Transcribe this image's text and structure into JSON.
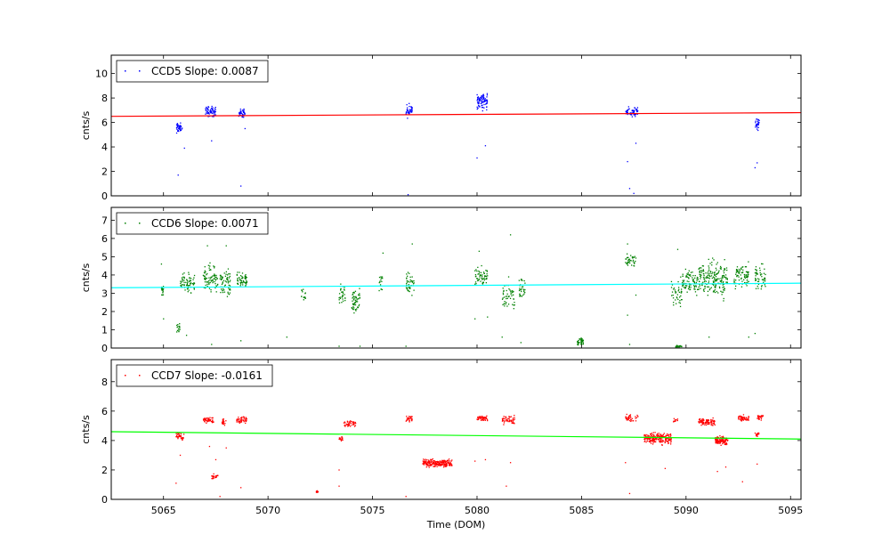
{
  "chart_data": [
    {
      "type": "scatter",
      "legend": "CCD5 Slope: 0.0087",
      "legend_placement": "top-left",
      "ylabel": "cnts/s",
      "xlim": [
        5062.5,
        5095.5
      ],
      "ylim": [
        0,
        11.5
      ],
      "yticks": [
        0,
        2,
        4,
        6,
        8,
        10
      ],
      "xticks": [
        5065,
        5070,
        5075,
        5080,
        5085,
        5090,
        5095
      ],
      "point_color": "#0000ff",
      "line_color": "#ff0000",
      "fit_line": {
        "x": [
          5062.5,
          5095.5
        ],
        "y": [
          6.5,
          6.8
        ]
      },
      "clusters": [
        {
          "x": [
            5065.6,
            5065.9
          ],
          "y": [
            5.0,
            6.1
          ],
          "n": 45
        },
        {
          "x": [
            5067.0,
            5067.5
          ],
          "y": [
            6.3,
            7.5
          ],
          "n": 60
        },
        {
          "x": [
            5068.6,
            5068.9
          ],
          "y": [
            6.2,
            7.3
          ],
          "n": 40
        },
        {
          "x": [
            5076.6,
            5076.9
          ],
          "y": [
            6.2,
            7.7
          ],
          "n": 45
        },
        {
          "x": [
            5080.0,
            5080.5
          ],
          "y": [
            6.8,
            8.7
          ],
          "n": 90
        },
        {
          "x": [
            5087.1,
            5087.7
          ],
          "y": [
            6.4,
            7.4
          ],
          "n": 60
        },
        {
          "x": [
            5093.3,
            5093.5
          ],
          "y": [
            5.2,
            6.5
          ],
          "n": 30
        }
      ],
      "outliers": [
        [
          5065.7,
          1.7
        ],
        [
          5066.0,
          3.9
        ],
        [
          5067.3,
          4.5
        ],
        [
          5068.7,
          0.8
        ],
        [
          5068.9,
          5.5
        ],
        [
          5076.7,
          0.1
        ],
        [
          5080.0,
          3.1
        ],
        [
          5080.4,
          4.1
        ],
        [
          5087.2,
          2.8
        ],
        [
          5087.3,
          0.6
        ],
        [
          5087.5,
          0.2
        ],
        [
          5087.6,
          4.3
        ],
        [
          5093.3,
          2.3
        ],
        [
          5093.4,
          2.7
        ]
      ]
    },
    {
      "type": "scatter",
      "legend": "CCD6 Slope: 0.0071",
      "legend_placement": "top-left",
      "ylabel": "cnts/s",
      "xlim": [
        5062.5,
        5095.5
      ],
      "ylim": [
        0,
        7.7
      ],
      "yticks": [
        0,
        1,
        2,
        3,
        4,
        5,
        6,
        7
      ],
      "xticks": [
        5065,
        5070,
        5075,
        5080,
        5085,
        5090,
        5095
      ],
      "point_color": "#008000",
      "line_color": "#00ffff",
      "fit_line": {
        "x": [
          5062.5,
          5095.5
        ],
        "y": [
          3.3,
          3.55
        ]
      },
      "clusters": [
        {
          "x": [
            5064.9,
            5065.0
          ],
          "y": [
            2.8,
            3.6
          ],
          "n": 20
        },
        {
          "x": [
            5065.6,
            5065.8
          ],
          "y": [
            0.8,
            1.4
          ],
          "n": 15
        },
        {
          "x": [
            5065.8,
            5066.5
          ],
          "y": [
            2.8,
            4.3
          ],
          "n": 70
        },
        {
          "x": [
            5066.9,
            5067.6
          ],
          "y": [
            2.8,
            4.8
          ],
          "n": 80
        },
        {
          "x": [
            5067.7,
            5068.2
          ],
          "y": [
            2.4,
            4.6
          ],
          "n": 60
        },
        {
          "x": [
            5068.5,
            5069.0
          ],
          "y": [
            3.1,
            4.3
          ],
          "n": 55
        },
        {
          "x": [
            5071.6,
            5071.8
          ],
          "y": [
            2.3,
            3.4
          ],
          "n": 15
        },
        {
          "x": [
            5073.4,
            5073.7
          ],
          "y": [
            2.0,
            3.8
          ],
          "n": 30
        },
        {
          "x": [
            5074.0,
            5074.4
          ],
          "y": [
            1.5,
            3.6
          ],
          "n": 55
        },
        {
          "x": [
            5075.3,
            5075.5
          ],
          "y": [
            2.9,
            4.2
          ],
          "n": 15
        },
        {
          "x": [
            5076.6,
            5077.0
          ],
          "y": [
            2.6,
            4.4
          ],
          "n": 40
        },
        {
          "x": [
            5079.9,
            5080.5
          ],
          "y": [
            3.2,
            4.6
          ],
          "n": 60
        },
        {
          "x": [
            5081.2,
            5081.8
          ],
          "y": [
            1.5,
            4.1
          ],
          "n": 50
        },
        {
          "x": [
            5082.0,
            5082.3
          ],
          "y": [
            2.4,
            4.2
          ],
          "n": 30
        },
        {
          "x": [
            5084.8,
            5085.1
          ],
          "y": [
            0.1,
            0.6
          ],
          "n": 40
        },
        {
          "x": [
            5087.1,
            5087.6
          ],
          "y": [
            4.3,
            5.3
          ],
          "n": 40
        },
        {
          "x": [
            5089.3,
            5089.8
          ],
          "y": [
            1.8,
            4.4
          ],
          "n": 40
        },
        {
          "x": [
            5089.5,
            5089.8
          ],
          "y": [
            0.0,
            0.2
          ],
          "n": 20
        },
        {
          "x": [
            5089.8,
            5090.6
          ],
          "y": [
            2.6,
            4.6
          ],
          "n": 80
        },
        {
          "x": [
            5090.6,
            5092.0
          ],
          "y": [
            2.4,
            5.2
          ],
          "n": 200
        },
        {
          "x": [
            5092.3,
            5093.0
          ],
          "y": [
            3.0,
            4.9
          ],
          "n": 80
        },
        {
          "x": [
            5093.3,
            5093.8
          ],
          "y": [
            3.0,
            4.8
          ],
          "n": 50
        }
      ],
      "outliers": [
        [
          5064.9,
          4.6
        ],
        [
          5065.0,
          1.6
        ],
        [
          5066.1,
          0.7
        ],
        [
          5067.1,
          5.6
        ],
        [
          5067.3,
          0.2
        ],
        [
          5068.0,
          5.6
        ],
        [
          5068.7,
          0.4
        ],
        [
          5070.9,
          0.6
        ],
        [
          5073.4,
          0.1
        ],
        [
          5074.4,
          0.1
        ],
        [
          5075.5,
          5.2
        ],
        [
          5076.6,
          0.1
        ],
        [
          5076.9,
          5.7
        ],
        [
          5079.9,
          1.6
        ],
        [
          5080.1,
          5.3
        ],
        [
          5080.5,
          1.7
        ],
        [
          5081.6,
          6.2
        ],
        [
          5081.2,
          0.6
        ],
        [
          5082.1,
          0.3
        ],
        [
          5087.2,
          5.7
        ],
        [
          5087.2,
          1.8
        ],
        [
          5087.3,
          0.2
        ],
        [
          5087.6,
          2.9
        ],
        [
          5089.6,
          5.4
        ],
        [
          5091.1,
          0.6
        ],
        [
          5093.0,
          0.6
        ],
        [
          5093.3,
          0.8
        ]
      ]
    },
    {
      "type": "scatter",
      "legend": "CCD7 Slope: -0.0161",
      "legend_placement": "top-left",
      "ylabel": "cnts/s",
      "xlabel": "Time (DOM)",
      "xlim": [
        5062.5,
        5095.5
      ],
      "ylim": [
        0,
        9.5
      ],
      "yticks": [
        0,
        2,
        4,
        6,
        8
      ],
      "xticks": [
        5065,
        5070,
        5075,
        5080,
        5085,
        5090,
        5095
      ],
      "xticklabels": [
        "5065",
        "5070",
        "5075",
        "5080",
        "5085",
        "5090",
        "5095"
      ],
      "point_color": "#ff0000",
      "line_color": "#00ff00",
      "fit_line": {
        "x": [
          5062.5,
          5095.5
        ],
        "y": [
          4.6,
          4.1
        ]
      },
      "clusters": [
        {
          "x": [
            5065.6,
            5066.0
          ],
          "y": [
            3.9,
            4.6
          ],
          "n": 40
        },
        {
          "x": [
            5066.9,
            5067.4
          ],
          "y": [
            5.1,
            5.7
          ],
          "n": 50
        },
        {
          "x": [
            5067.3,
            5067.6
          ],
          "y": [
            1.3,
            1.8
          ],
          "n": 25
        },
        {
          "x": [
            5067.8,
            5068.0
          ],
          "y": [
            5.0,
            5.6
          ],
          "n": 20
        },
        {
          "x": [
            5068.5,
            5069.0
          ],
          "y": [
            5.1,
            5.7
          ],
          "n": 45
        },
        {
          "x": [
            5072.3,
            5072.4
          ],
          "y": [
            0.4,
            0.7
          ],
          "n": 10
        },
        {
          "x": [
            5073.4,
            5073.6
          ],
          "y": [
            3.9,
            4.4
          ],
          "n": 15
        },
        {
          "x": [
            5073.6,
            5074.2
          ],
          "y": [
            4.8,
            5.5
          ],
          "n": 45
        },
        {
          "x": [
            5076.6,
            5076.9
          ],
          "y": [
            5.2,
            5.8
          ],
          "n": 30
        },
        {
          "x": [
            5077.4,
            5078.8
          ],
          "y": [
            2.1,
            2.8
          ],
          "n": 200
        },
        {
          "x": [
            5080.0,
            5080.5
          ],
          "y": [
            5.2,
            5.8
          ],
          "n": 50
        },
        {
          "x": [
            5081.2,
            5081.8
          ],
          "y": [
            5.0,
            5.8
          ],
          "n": 50
        },
        {
          "x": [
            5087.1,
            5087.7
          ],
          "y": [
            5.2,
            5.9
          ],
          "n": 40
        },
        {
          "x": [
            5088.0,
            5089.3
          ],
          "y": [
            3.6,
            4.7
          ],
          "n": 220
        },
        {
          "x": [
            5089.4,
            5089.6
          ],
          "y": [
            5.2,
            5.6
          ],
          "n": 10
        },
        {
          "x": [
            5090.6,
            5091.4
          ],
          "y": [
            4.9,
            5.6
          ],
          "n": 90
        },
        {
          "x": [
            5091.4,
            5092.0
          ],
          "y": [
            3.6,
            4.4
          ],
          "n": 120
        },
        {
          "x": [
            5092.5,
            5093.0
          ],
          "y": [
            5.2,
            5.8
          ],
          "n": 50
        },
        {
          "x": [
            5093.3,
            5093.5
          ],
          "y": [
            4.2,
            4.6
          ],
          "n": 15
        },
        {
          "x": [
            5093.4,
            5093.7
          ],
          "y": [
            5.3,
            5.9
          ],
          "n": 25
        }
      ],
      "outliers": [
        [
          5065.6,
          1.1
        ],
        [
          5065.8,
          3.0
        ],
        [
          5067.2,
          3.6
        ],
        [
          5067.5,
          2.7
        ],
        [
          5067.7,
          0.2
        ],
        [
          5068.0,
          3.5
        ],
        [
          5068.7,
          0.8
        ],
        [
          5073.4,
          2.0
        ],
        [
          5073.4,
          0.9
        ],
        [
          5076.6,
          0.2
        ],
        [
          5079.9,
          2.6
        ],
        [
          5080.4,
          2.7
        ],
        [
          5081.4,
          0.9
        ],
        [
          5081.6,
          2.5
        ],
        [
          5087.1,
          2.5
        ],
        [
          5087.3,
          0.4
        ],
        [
          5089.0,
          2.1
        ],
        [
          5091.5,
          1.9
        ],
        [
          5091.9,
          2.2
        ],
        [
          5092.7,
          1.2
        ],
        [
          5093.4,
          2.4
        ]
      ]
    }
  ]
}
